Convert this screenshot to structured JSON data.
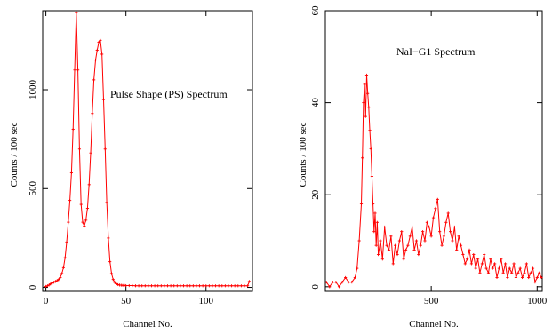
{
  "chart_data": [
    {
      "type": "line",
      "annotation": "Pulse Shape (PS) Spectrum",
      "xlabel": "Channel No.",
      "ylabel": "Counts / 100 sec",
      "xlim": [
        -2,
        129
      ],
      "ylim": [
        -20,
        1400
      ],
      "x_ticks": [
        0,
        50,
        100
      ],
      "y_ticks": [
        0,
        500,
        1000
      ],
      "color": "#ff0000",
      "x": [
        0,
        1,
        2,
        3,
        4,
        5,
        6,
        7,
        8,
        9,
        10,
        11,
        12,
        13,
        14,
        15,
        16,
        17,
        18,
        19,
        20,
        21,
        22,
        23,
        24,
        25,
        26,
        27,
        28,
        29,
        30,
        31,
        32,
        33,
        34,
        35,
        36,
        37,
        38,
        39,
        40,
        41,
        42,
        43,
        44,
        45,
        46,
        47,
        48,
        49,
        50,
        52,
        54,
        56,
        58,
        60,
        62,
        64,
        66,
        68,
        70,
        72,
        74,
        76,
        78,
        80,
        82,
        84,
        86,
        88,
        90,
        92,
        94,
        96,
        98,
        100,
        102,
        104,
        106,
        108,
        110,
        112,
        114,
        116,
        118,
        120,
        122,
        124,
        126,
        127
      ],
      "y": [
        5,
        8,
        12,
        18,
        22,
        26,
        30,
        34,
        40,
        50,
        70,
        100,
        150,
        230,
        330,
        440,
        580,
        800,
        1100,
        1390,
        1100,
        700,
        420,
        330,
        310,
        340,
        400,
        520,
        680,
        880,
        1050,
        1150,
        1200,
        1240,
        1250,
        1180,
        950,
        700,
        430,
        250,
        130,
        70,
        40,
        25,
        18,
        14,
        12,
        11,
        10,
        10,
        9,
        9,
        9,
        8,
        8,
        8,
        8,
        8,
        8,
        8,
        8,
        8,
        8,
        8,
        8,
        8,
        8,
        8,
        8,
        8,
        8,
        8,
        8,
        8,
        8,
        8,
        8,
        8,
        8,
        8,
        8,
        8,
        8,
        8,
        8,
        8,
        8,
        8,
        8,
        30
      ]
    },
    {
      "type": "line",
      "annotation": "NaI−G1 Spectrum",
      "xlabel": "Channel No.",
      "ylabel": "Counts / 100 sec",
      "xlim": [
        0,
        1024
      ],
      "ylim": [
        -1,
        60
      ],
      "x_ticks": [
        500,
        1000
      ],
      "y_ticks": [
        0,
        20,
        40,
        60
      ],
      "color": "#ff0000",
      "x": [
        5,
        20,
        35,
        50,
        65,
        80,
        95,
        110,
        125,
        140,
        150,
        160,
        170,
        175,
        180,
        185,
        190,
        195,
        200,
        205,
        210,
        215,
        220,
        225,
        230,
        235,
        240,
        245,
        250,
        260,
        270,
        280,
        290,
        300,
        310,
        320,
        330,
        340,
        350,
        360,
        370,
        380,
        390,
        400,
        410,
        420,
        430,
        440,
        450,
        460,
        470,
        480,
        490,
        500,
        510,
        520,
        530,
        540,
        550,
        560,
        570,
        580,
        590,
        600,
        610,
        620,
        630,
        640,
        650,
        660,
        670,
        680,
        690,
        700,
        710,
        720,
        730,
        740,
        750,
        760,
        770,
        780,
        790,
        800,
        810,
        820,
        830,
        840,
        850,
        860,
        870,
        880,
        890,
        900,
        910,
        920,
        930,
        940,
        950,
        960,
        970,
        980,
        990,
        1000,
        1010,
        1020
      ],
      "y": [
        1,
        0,
        1,
        1,
        0,
        1,
        2,
        1,
        1,
        2,
        4,
        10,
        18,
        28,
        40,
        44,
        37,
        46,
        42,
        39,
        34,
        30,
        24,
        18,
        12,
        16,
        9,
        14,
        7,
        10,
        6,
        13,
        9,
        8,
        11,
        5,
        9,
        7,
        10,
        12,
        6,
        8,
        9,
        11,
        13,
        8,
        10,
        7,
        9,
        12,
        10,
        14,
        13,
        11,
        15,
        17,
        19,
        12,
        9,
        11,
        14,
        16,
        12,
        10,
        13,
        8,
        11,
        9,
        7,
        5,
        6,
        8,
        5,
        7,
        4,
        6,
        3,
        5,
        7,
        4,
        3,
        6,
        4,
        5,
        2,
        4,
        6,
        3,
        5,
        2,
        4,
        3,
        5,
        2,
        3,
        4,
        2,
        3,
        5,
        2,
        3,
        4,
        1,
        2,
        3,
        2
      ]
    }
  ]
}
